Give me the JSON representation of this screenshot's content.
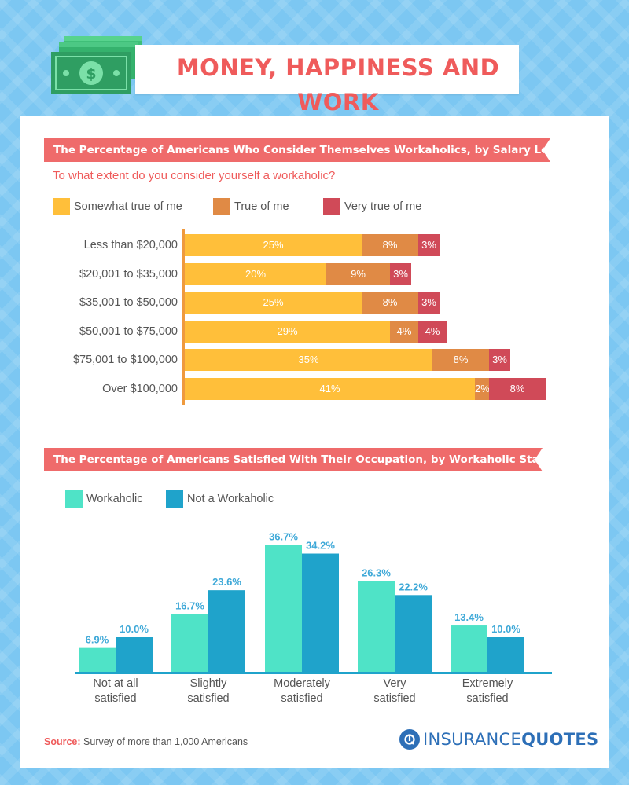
{
  "header": {
    "title": "MONEY, HAPPINESS AND WORK"
  },
  "section1": {
    "banner": "The Percentage of Americans Who Consider Themselves Workaholics, by Salary Level",
    "question": "To what extent do you consider yourself a workaholic?"
  },
  "section2": {
    "banner": "The Percentage of Americans Satisfied With Their Occupation, by Workaholic Status"
  },
  "source": {
    "label": "Source:",
    "text": "Survey of more than 1,000 Americans"
  },
  "logo": {
    "part1": "INSURANCE",
    "part2": "QUOTES"
  },
  "colors": {
    "somewhat": "#ffbf3a",
    "true": "#e08a45",
    "very": "#d04a58",
    "workaholic": "#4fe3c7",
    "not_workaholic": "#1fa3cb",
    "accent": "#ef5b5b"
  },
  "chart_data": [
    {
      "type": "bar",
      "orientation": "horizontal",
      "stacked": true,
      "categories": [
        "Less than $20,000",
        "$20,001 to $35,000",
        "$35,001 to $50,000",
        "$50,001 to $75,000",
        "$75,001 to $100,000",
        "Over $100,000"
      ],
      "series": [
        {
          "name": "Somewhat true of me",
          "values": [
            25,
            20,
            25,
            29,
            35,
            41
          ],
          "labels": [
            "25%",
            "20%",
            "25%",
            "29%",
            "35%",
            "41%"
          ]
        },
        {
          "name": "True of me",
          "values": [
            8,
            9,
            8,
            4,
            8,
            2
          ],
          "labels": [
            "8%",
            "9%",
            "8%",
            "4%",
            "8%",
            "2%"
          ]
        },
        {
          "name": "Very true of me",
          "values": [
            3,
            3,
            3,
            4,
            3,
            8
          ],
          "labels": [
            "3%",
            "3%",
            "3%",
            "4%",
            "3%",
            "8%"
          ]
        }
      ],
      "legend": "top-left"
    },
    {
      "type": "bar",
      "orientation": "vertical",
      "categories": [
        [
          "Not at all",
          "satisfied"
        ],
        [
          "Slightly",
          "satisfied"
        ],
        [
          "Moderately",
          "satisfied"
        ],
        [
          "Very",
          "satisfied"
        ],
        [
          "Extremely",
          "satisfied"
        ]
      ],
      "series": [
        {
          "name": "Workaholic",
          "values": [
            6.9,
            16.7,
            36.7,
            26.3,
            13.4
          ],
          "labels": [
            "6.9%",
            "16.7%",
            "36.7%",
            "26.3%",
            "13.4%"
          ]
        },
        {
          "name": "Not a Workaholic",
          "values": [
            10.0,
            23.6,
            34.2,
            22.2,
            10.0
          ],
          "labels": [
            "10.0%",
            "23.6%",
            "34.2%",
            "22.2%",
            "10.0%"
          ]
        }
      ],
      "legend": "top-left"
    }
  ]
}
